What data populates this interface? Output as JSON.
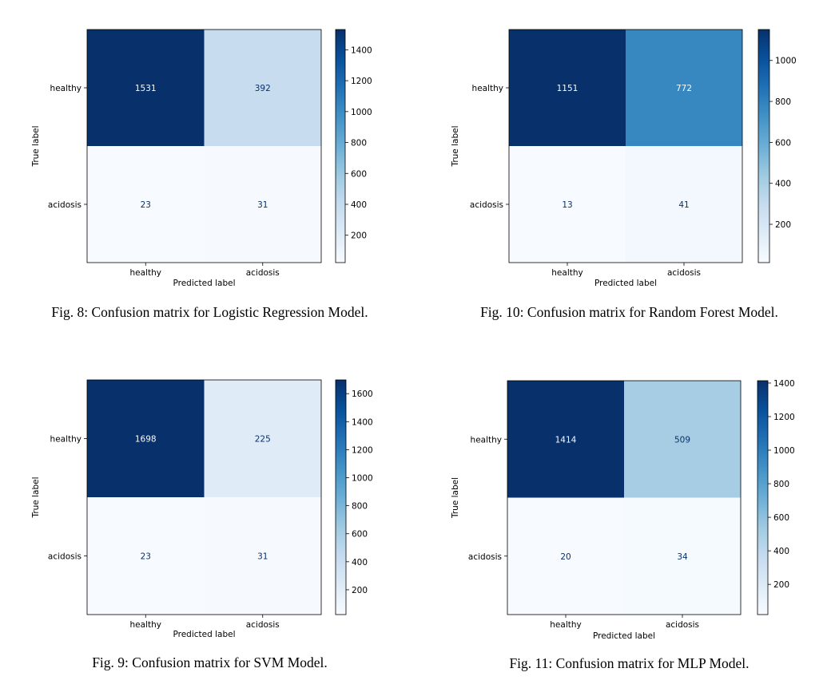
{
  "chart_data": [
    {
      "type": "heatmap",
      "caption": "Fig. 8: Confusion matrix for Logistic Regression Model.",
      "xlabel": "Predicted label",
      "ylabel": "True label",
      "x_categories": [
        "healthy",
        "acidosis"
      ],
      "y_categories": [
        "healthy",
        "acidosis"
      ],
      "values": [
        [
          1531,
          392
        ],
        [
          23,
          31
        ]
      ],
      "colorbar": {
        "min": 23,
        "max": 1531,
        "ticks": [
          200,
          400,
          600,
          800,
          1000,
          1200,
          1400
        ]
      },
      "colormap": "Blues"
    },
    {
      "type": "heatmap",
      "caption": "Fig. 10: Confusion matrix for Random Forest Model.",
      "xlabel": "Predicted label",
      "ylabel": "True label",
      "x_categories": [
        "healthy",
        "acidosis"
      ],
      "y_categories": [
        "healthy",
        "acidosis"
      ],
      "values": [
        [
          1151,
          772
        ],
        [
          13,
          41
        ]
      ],
      "colorbar": {
        "min": 13,
        "max": 1151,
        "ticks": [
          200,
          400,
          600,
          800,
          1000
        ]
      },
      "colormap": "Blues"
    },
    {
      "type": "heatmap",
      "caption": "Fig. 9: Confusion matrix for SVM Model.",
      "xlabel": "Predicted label",
      "ylabel": "True label",
      "x_categories": [
        "healthy",
        "acidosis"
      ],
      "y_categories": [
        "healthy",
        "acidosis"
      ],
      "values": [
        [
          1698,
          225
        ],
        [
          23,
          31
        ]
      ],
      "colorbar": {
        "min": 23,
        "max": 1698,
        "ticks": [
          200,
          400,
          600,
          800,
          1000,
          1200,
          1400,
          1600
        ]
      },
      "colormap": "Blues"
    },
    {
      "type": "heatmap",
      "caption": "Fig. 11: Confusion matrix for MLP Model.",
      "xlabel": "Predicted label",
      "ylabel": "True label",
      "x_categories": [
        "healthy",
        "acidosis"
      ],
      "y_categories": [
        "healthy",
        "acidosis"
      ],
      "values": [
        [
          1414,
          509
        ],
        [
          20,
          34
        ]
      ],
      "colorbar": {
        "min": 20,
        "max": 1414,
        "ticks": [
          200,
          400,
          600,
          800,
          1000,
          1200,
          1400
        ]
      },
      "colormap": "Blues"
    }
  ]
}
